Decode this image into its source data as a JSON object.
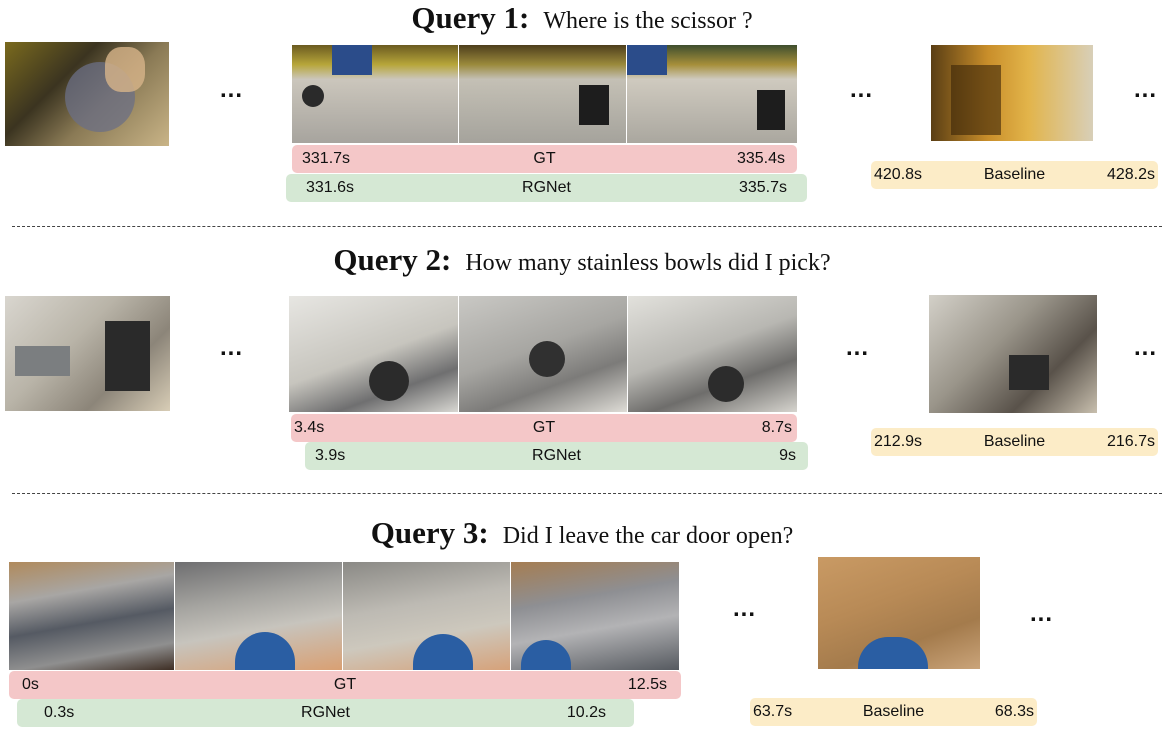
{
  "queries": [
    {
      "label": "Query 1:",
      "text": "Where is the scissor ?",
      "gt": {
        "start": "331.7s",
        "label": "GT",
        "end": "335.4s"
      },
      "rgnet": {
        "start": "331.6s",
        "label": "RGNet",
        "end": "335.7s"
      },
      "baseline": {
        "start": "420.8s",
        "label": "Baseline",
        "end": "428.2s"
      }
    },
    {
      "label": "Query 2:",
      "text": "How many stainless bowls did I pick?",
      "gt": {
        "start": "3.4s",
        "label": "GT",
        "end": "8.7s"
      },
      "rgnet": {
        "start": "3.9s",
        "label": "RGNet",
        "end": "9s"
      },
      "baseline": {
        "start": "212.9s",
        "label": "Baseline",
        "end": "216.7s"
      }
    },
    {
      "label": "Query 3:",
      "text": "Did I leave the car door open?",
      "gt": {
        "start": "0s",
        "label": "GT",
        "end": "12.5s"
      },
      "rgnet": {
        "start": "0.3s",
        "label": "RGNet",
        "end": "10.2s"
      },
      "baseline": {
        "start": "63.7s",
        "label": "Baseline",
        "end": "68.3s"
      }
    }
  ],
  "ellipsis": "...",
  "colors": {
    "gt": "#f4c7c8",
    "rgnet": "#d5e8d4",
    "baseline": "#fcecc7"
  }
}
